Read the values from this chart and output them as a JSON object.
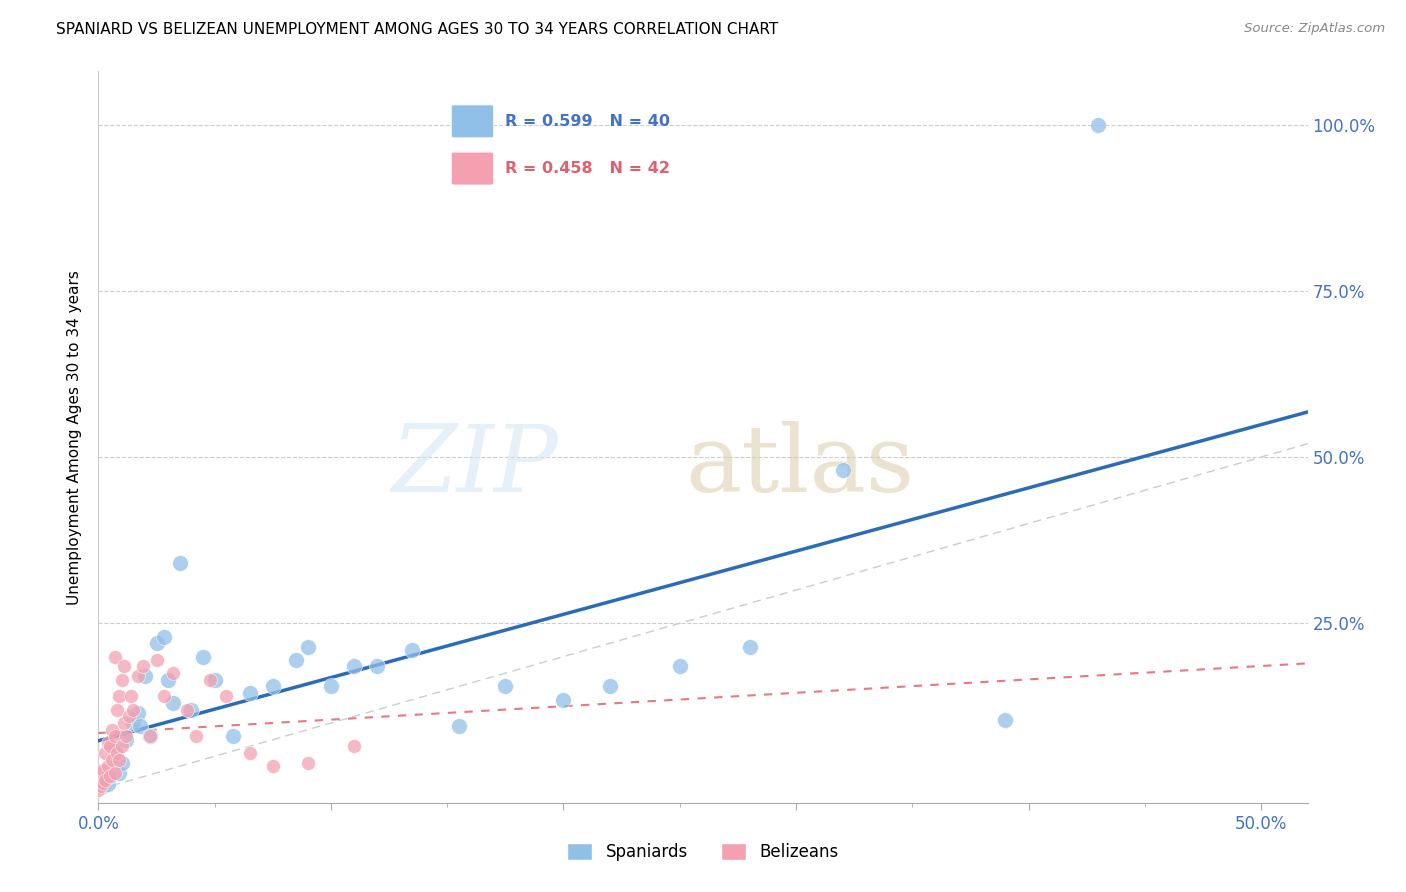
{
  "title": "SPANIARD VS BELIZEAN UNEMPLOYMENT AMONG AGES 30 TO 34 YEARS CORRELATION CHART",
  "source": "Source: ZipAtlas.com",
  "ylabel": "Unemployment Among Ages 30 to 34 years",
  "xlim": [
    0.0,
    0.52
  ],
  "ylim": [
    -0.02,
    1.08
  ],
  "spaniards_color": "#90C0E8",
  "belizeans_color": "#F4A0B0",
  "trend_spaniards_color": "#2B6CB8",
  "trend_belizeans_color": "#E87880",
  "r_spaniards": "R = 0.599",
  "n_spaniards": "N = 40",
  "r_belizeans": "R = 0.458",
  "n_belizeans": "N = 42",
  "legend_spaniards": "Spaniards",
  "legend_belizeans": "Belizeans",
  "spaniards_x": [
    0.001,
    0.002,
    0.003,
    0.004,
    0.005,
    0.007,
    0.009,
    0.01,
    0.012,
    0.015,
    0.017,
    0.018,
    0.02,
    0.022,
    0.025,
    0.028,
    0.03,
    0.032,
    0.035,
    0.04,
    0.045,
    0.05,
    0.058,
    0.065,
    0.075,
    0.085,
    0.09,
    0.1,
    0.11,
    0.12,
    0.135,
    0.155,
    0.175,
    0.2,
    0.22,
    0.25,
    0.28,
    0.32,
    0.39,
    0.43
  ],
  "spaniards_y": [
    0.01,
    0.005,
    0.015,
    0.008,
    0.02,
    0.06,
    0.025,
    0.04,
    0.075,
    0.1,
    0.115,
    0.095,
    0.17,
    0.08,
    0.22,
    0.23,
    0.165,
    0.13,
    0.34,
    0.12,
    0.2,
    0.165,
    0.08,
    0.145,
    0.155,
    0.195,
    0.215,
    0.155,
    0.185,
    0.185,
    0.21,
    0.095,
    0.155,
    0.135,
    0.155,
    0.185,
    0.215,
    0.48,
    0.105,
    1.0
  ],
  "belizeans_x": [
    0.0,
    0.001,
    0.001,
    0.002,
    0.002,
    0.003,
    0.003,
    0.004,
    0.004,
    0.005,
    0.005,
    0.006,
    0.006,
    0.007,
    0.007,
    0.007,
    0.008,
    0.008,
    0.009,
    0.009,
    0.01,
    0.01,
    0.011,
    0.011,
    0.012,
    0.013,
    0.014,
    0.015,
    0.017,
    0.019,
    0.022,
    0.025,
    0.028,
    0.032,
    0.038,
    0.042,
    0.048,
    0.055,
    0.065,
    0.075,
    0.09,
    0.11
  ],
  "belizeans_y": [
    0.0,
    0.005,
    0.025,
    0.01,
    0.03,
    0.015,
    0.055,
    0.035,
    0.07,
    0.02,
    0.065,
    0.045,
    0.09,
    0.025,
    0.08,
    0.2,
    0.055,
    0.12,
    0.045,
    0.14,
    0.065,
    0.165,
    0.1,
    0.185,
    0.08,
    0.11,
    0.14,
    0.12,
    0.17,
    0.185,
    0.08,
    0.195,
    0.14,
    0.175,
    0.12,
    0.08,
    0.165,
    0.14,
    0.055,
    0.035,
    0.04,
    0.065
  ]
}
